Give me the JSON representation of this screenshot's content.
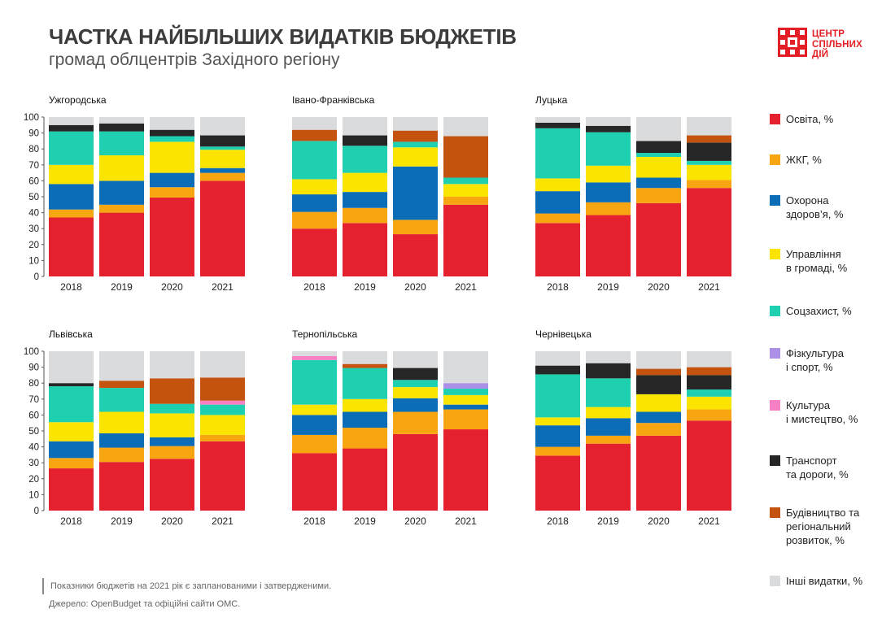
{
  "header": {
    "title": "ЧАСТКА НАЙБІЛЬШИХ ВИДАТКІВ БЮДЖЕТІВ",
    "subtitle": "громад облцентрів Західного регіону"
  },
  "logo": {
    "lines": [
      "ЦЕНТР",
      "СПІЛЬНИХ",
      "ДІЙ"
    ],
    "color": "#e31e24"
  },
  "footer": {
    "note": "Показники бюджетів на 2021 рік є запланованими і затвердженими.",
    "source": "Джерело: OpenBudget та офіційні сайти ОМС."
  },
  "legend": [
    {
      "key": "osvita",
      "label": "Освіта, %",
      "color": "#e6212f"
    },
    {
      "key": "zhkg",
      "label": "ЖКГ, %",
      "color": "#f7a612"
    },
    {
      "key": "health",
      "label": "Охорона\nздоров’я, %",
      "color": "#0b6db7"
    },
    {
      "key": "admin",
      "label": "Управління\nв громаді, %",
      "color": "#fbe400"
    },
    {
      "key": "social",
      "label": "Соцзахист, %",
      "color": "#1ed0b0"
    },
    {
      "key": "sport",
      "label": "Фізкультура\nі спорт, %",
      "color": "#ac8fe6"
    },
    {
      "key": "culture",
      "label": "Культура\nі мистецтво, %",
      "color": "#f77fc4"
    },
    {
      "key": "transport",
      "label": "Транспорт\nта дороги, %",
      "color": "#262626"
    },
    {
      "key": "construction",
      "label": "Будівництво та\nрегіональний\nрозвиток, %",
      "color": "#c4530f"
    },
    {
      "key": "other",
      "label": "Інші  видатки, %",
      "color": "#dadbdd"
    }
  ],
  "chart_data": [
    {
      "type": "bar",
      "stacked": true,
      "title": "Ужгородська",
      "categories": [
        "2018",
        "2019",
        "2020",
        "2021"
      ],
      "ylim": [
        0,
        100
      ],
      "yticks": [
        0,
        10,
        20,
        30,
        40,
        50,
        60,
        70,
        80,
        90,
        100
      ],
      "series": [
        {
          "name": "Освіта, %",
          "values": [
            37,
            40,
            49.5,
            60
          ]
        },
        {
          "name": "ЖКГ, %",
          "values": [
            5,
            5,
            6.5,
            5
          ]
        },
        {
          "name": "Охорона здоров’я, %",
          "values": [
            16,
            15,
            9,
            3
          ]
        },
        {
          "name": "Управління в громаді, %",
          "values": [
            12,
            16,
            19.5,
            11.5
          ]
        },
        {
          "name": "Соцзахист, %",
          "values": [
            21,
            15,
            3.5,
            2
          ]
        },
        {
          "name": "Фізкультура і спорт, %",
          "values": [
            0,
            0,
            0,
            0
          ]
        },
        {
          "name": "Культура і мистецтво, %",
          "values": [
            0,
            0,
            0,
            0
          ]
        },
        {
          "name": "Транспорт та дороги, %",
          "values": [
            4,
            5,
            4,
            7
          ]
        },
        {
          "name": "Будівництво та регіональний розвиток, %",
          "values": [
            0,
            0,
            0,
            0
          ]
        },
        {
          "name": "Інші видатки, %",
          "values": [
            5,
            4,
            8,
            11.5
          ]
        }
      ]
    },
    {
      "type": "bar",
      "stacked": true,
      "title": "Івано-Франківська",
      "categories": [
        "2018",
        "2019",
        "2020",
        "2021"
      ],
      "ylim": [
        0,
        100
      ],
      "yticks": [],
      "series": [
        {
          "name": "Освіта, %",
          "values": [
            30,
            33.5,
            26.5,
            45
          ]
        },
        {
          "name": "ЖКГ, %",
          "values": [
            10.5,
            9.5,
            9,
            5
          ]
        },
        {
          "name": "Охорона здоров’я, %",
          "values": [
            11,
            10,
            33.5,
            0
          ]
        },
        {
          "name": "Управління в громаді, %",
          "values": [
            9.5,
            12,
            12,
            8
          ]
        },
        {
          "name": "Соцзахист, %",
          "values": [
            24,
            17,
            3.5,
            4
          ]
        },
        {
          "name": "Фізкультура і спорт, %",
          "values": [
            0,
            0,
            0,
            0
          ]
        },
        {
          "name": "Культура і мистецтво, %",
          "values": [
            0,
            0,
            0,
            0
          ]
        },
        {
          "name": "Транспорт та дороги, %",
          "values": [
            0,
            6.5,
            0,
            0
          ]
        },
        {
          "name": "Будівництво та регіональний розвиток, %",
          "values": [
            7,
            0,
            7,
            26
          ]
        },
        {
          "name": "Інші видатки, %",
          "values": [
            8,
            11.5,
            8.5,
            12
          ]
        }
      ]
    },
    {
      "type": "bar",
      "stacked": true,
      "title": "Луцька",
      "categories": [
        "2018",
        "2019",
        "2020",
        "2021"
      ],
      "ylim": [
        0,
        100
      ],
      "yticks": [],
      "series": [
        {
          "name": "Освіта, %",
          "values": [
            33.5,
            38.5,
            46,
            55.5
          ]
        },
        {
          "name": "ЖКГ, %",
          "values": [
            6,
            8,
            9.5,
            5
          ]
        },
        {
          "name": "Охорона здоров’я, %",
          "values": [
            14,
            12.5,
            6.5,
            0
          ]
        },
        {
          "name": "Управління в громаді, %",
          "values": [
            8,
            10.5,
            13,
            9.5
          ]
        },
        {
          "name": "Соцзахист, %",
          "values": [
            31.5,
            21,
            2.5,
            2.5
          ]
        },
        {
          "name": "Фізкультура і спорт, %",
          "values": [
            0,
            0,
            0,
            0
          ]
        },
        {
          "name": "Культура і мистецтво, %",
          "values": [
            0,
            0,
            0,
            0
          ]
        },
        {
          "name": "Транспорт та дороги, %",
          "values": [
            3.5,
            4,
            7.5,
            11.5
          ]
        },
        {
          "name": "Будівництво та регіональний розвиток, %",
          "values": [
            0,
            0,
            0,
            4.5
          ]
        },
        {
          "name": "Інші видатки, %",
          "values": [
            3.5,
            5.5,
            15,
            11.5
          ]
        }
      ]
    },
    {
      "type": "bar",
      "stacked": true,
      "title": "Львівська",
      "categories": [
        "2018",
        "2019",
        "2020",
        "2021"
      ],
      "ylim": [
        0,
        100
      ],
      "yticks": [
        0,
        10,
        20,
        30,
        40,
        50,
        60,
        70,
        80,
        90,
        100
      ],
      "series": [
        {
          "name": "Освіта, %",
          "values": [
            26.5,
            30.5,
            32.5,
            43.5
          ]
        },
        {
          "name": "ЖКГ, %",
          "values": [
            6.5,
            9,
            8,
            4
          ]
        },
        {
          "name": "Охорона здоров’я, %",
          "values": [
            10.5,
            9,
            5.5,
            0
          ]
        },
        {
          "name": "Управління в громаді, %",
          "values": [
            12,
            13.5,
            15,
            12.5
          ]
        },
        {
          "name": "Соцзахист, %",
          "values": [
            22.5,
            15,
            6,
            6.5
          ]
        },
        {
          "name": "Фізкультура і спорт, %",
          "values": [
            0,
            0,
            0,
            0
          ]
        },
        {
          "name": "Культура і мистецтво, %",
          "values": [
            0,
            0,
            0,
            2.5
          ]
        },
        {
          "name": "Транспорт та дороги, %",
          "values": [
            2,
            0,
            0,
            0
          ]
        },
        {
          "name": "Будівництво та регіональний розвиток, %",
          "values": [
            0,
            4.5,
            16,
            14.5
          ]
        },
        {
          "name": "Інші видатки, %",
          "values": [
            20,
            18.5,
            17,
            16.5
          ]
        }
      ]
    },
    {
      "type": "bar",
      "stacked": true,
      "title": "Тернопільська",
      "categories": [
        "2018",
        "2019",
        "2020",
        "2021"
      ],
      "ylim": [
        0,
        100
      ],
      "yticks": [],
      "series": [
        {
          "name": "Освіта, %",
          "values": [
            36,
            39,
            48,
            51
          ]
        },
        {
          "name": "ЖКГ, %",
          "values": [
            11.5,
            13,
            14,
            12.5
          ]
        },
        {
          "name": "Охорона здоров’я, %",
          "values": [
            12.5,
            10,
            8.5,
            3
          ]
        },
        {
          "name": "Управління в громаді, %",
          "values": [
            6.5,
            8,
            7,
            6
          ]
        },
        {
          "name": "Соцзахист, %",
          "values": [
            28,
            19.5,
            4.5,
            4
          ]
        },
        {
          "name": "Фізкультура і спорт, %",
          "values": [
            0,
            0,
            0,
            3.5
          ]
        },
        {
          "name": "Культура і мистецтво, %",
          "values": [
            2.5,
            0,
            0,
            0
          ]
        },
        {
          "name": "Транспорт та дороги, %",
          "values": [
            0,
            0,
            7.5,
            0
          ]
        },
        {
          "name": "Будівництво та регіональний розвиток, %",
          "values": [
            0,
            2.5,
            0,
            0
          ]
        },
        {
          "name": "Інші видатки, %",
          "values": [
            3,
            8,
            10.5,
            20
          ]
        }
      ]
    },
    {
      "type": "bar",
      "stacked": true,
      "title": "Чернівецька",
      "categories": [
        "2018",
        "2019",
        "2020",
        "2021"
      ],
      "ylim": [
        0,
        100
      ],
      "yticks": [],
      "series": [
        {
          "name": "Освіта, %",
          "values": [
            34.5,
            42,
            47,
            56.5
          ]
        },
        {
          "name": "ЖКГ, %",
          "values": [
            5.5,
            5,
            8,
            7
          ]
        },
        {
          "name": "Охорона здоров’я, %",
          "values": [
            13.5,
            11,
            7,
            0
          ]
        },
        {
          "name": "Управління в громаді, %",
          "values": [
            5,
            7,
            11,
            8
          ]
        },
        {
          "name": "Соцзахист, %",
          "values": [
            27,
            18,
            0,
            4.5
          ]
        },
        {
          "name": "Фізкультура і спорт, %",
          "values": [
            0,
            0,
            0,
            0
          ]
        },
        {
          "name": "Культура і мистецтво, %",
          "values": [
            0,
            0,
            0,
            0
          ]
        },
        {
          "name": "Транспорт та дороги, %",
          "values": [
            5.5,
            9.5,
            12,
            9
          ]
        },
        {
          "name": "Будівництво та регіональний розвиток, %",
          "values": [
            0,
            0,
            4,
            5
          ]
        },
        {
          "name": "Інші видатки, %",
          "values": [
            9,
            7.5,
            11,
            10
          ]
        }
      ]
    }
  ]
}
